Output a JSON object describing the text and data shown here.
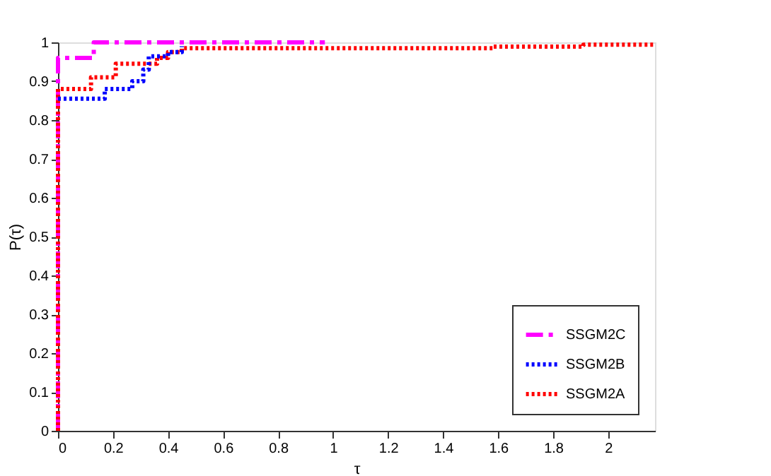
{
  "chart_data": {
    "type": "step",
    "xlabel": "τ",
    "ylabel": "P(τ)",
    "xlim": [
      0,
      2.17
    ],
    "xticks": [
      0,
      0.2,
      0.4,
      0.6,
      0.8,
      1,
      1.2,
      1.4,
      1.6,
      1.8,
      2
    ],
    "ylim": [
      0,
      1
    ],
    "yticks": [
      0,
      0.1,
      0.2,
      0.3,
      0.4,
      0.5,
      0.6,
      0.7,
      0.8,
      0.9,
      1
    ],
    "grid": false,
    "legend": "bottom right",
    "marker": "none",
    "series": [
      {
        "name": "SSGM2C",
        "color": "#ff00ff",
        "line_style": "dashed",
        "x": [
          0,
          0,
          0.13,
          0.97
        ],
        "values": [
          0,
          0.96,
          1,
          1
        ]
      },
      {
        "name": "SSGM2B",
        "color": "#0000ff",
        "line_style": "dotted",
        "x": [
          0,
          0.17,
          0.27,
          0.31,
          0.33,
          0.4,
          0.45
        ],
        "values": [
          0.855,
          0.88,
          0.9,
          0.93,
          0.964,
          0.975,
          0.99
        ]
      },
      {
        "name": "SSGM2A",
        "color": "#ff0000",
        "line_style": "dotted",
        "x": [
          0,
          0,
          0.12,
          0.21,
          0.36,
          0.4,
          0.45,
          1.58,
          1.91,
          2.17
        ],
        "values": [
          0,
          0.88,
          0.91,
          0.945,
          0.96,
          0.975,
          0.985,
          0.989,
          0.994,
          0.994
        ]
      }
    ]
  }
}
